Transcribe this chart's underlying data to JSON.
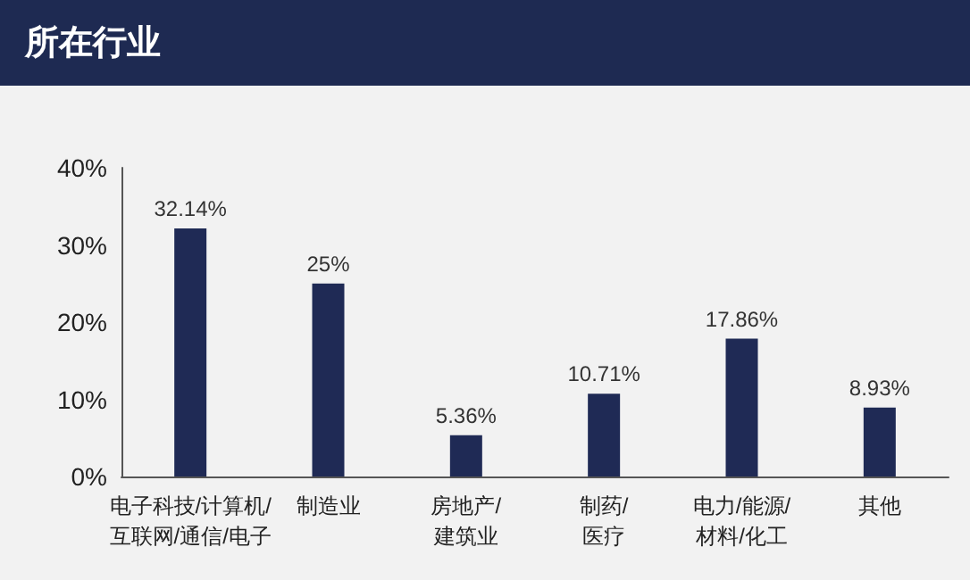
{
  "chart_data": {
    "type": "bar",
    "title": "所在行业",
    "categories": [
      "电子科技/计算机/\n互联网/通信/电子",
      "制造业",
      "房地产/\n建筑业",
      "制药/\n医疗",
      "电力/能源/\n材料/化工",
      "其他"
    ],
    "values": [
      32.14,
      25,
      5.36,
      10.71,
      17.86,
      8.93
    ],
    "value_labels": [
      "32.14%",
      "25%",
      "5.36%",
      "10.71%",
      "17.86%",
      "8.93%"
    ],
    "color": "#1f2a55",
    "ylim": [
      0,
      40
    ],
    "yticks": [
      {
        "value": 0,
        "label": "0%"
      },
      {
        "value": 10,
        "label": "10%"
      },
      {
        "value": 20,
        "label": "20%"
      },
      {
        "value": 30,
        "label": "30%"
      },
      {
        "value": 40,
        "label": "40%"
      }
    ],
    "grid": false
  }
}
